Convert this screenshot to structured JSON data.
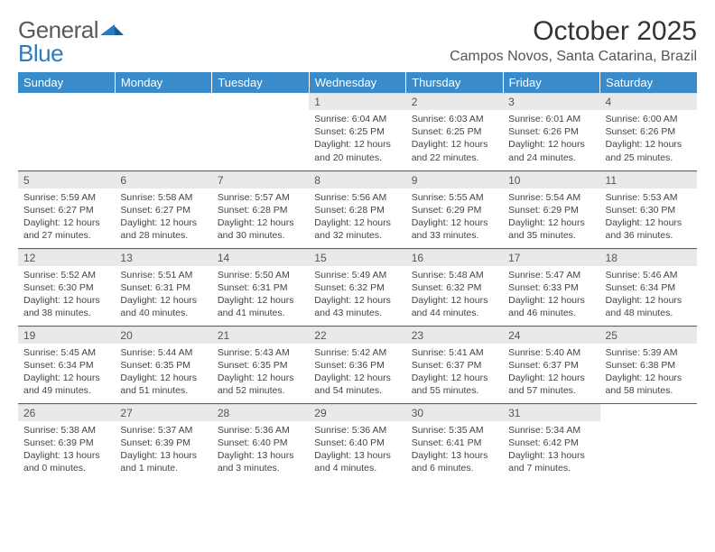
{
  "logo": {
    "text1": "General",
    "text2": "Blue"
  },
  "header": {
    "month_title": "October 2025",
    "location": "Campos Novos, Santa Catarina, Brazil"
  },
  "colors": {
    "header_bg": "#3a8bc9",
    "header_text": "#ffffff",
    "daynum_bg": "#e9e9e9",
    "row_divider": "#2b6ca3",
    "body_text": "#444"
  },
  "day_names": [
    "Sunday",
    "Monday",
    "Tuesday",
    "Wednesday",
    "Thursday",
    "Friday",
    "Saturday"
  ],
  "weeks": [
    [
      {
        "n": "",
        "sr": "",
        "ss": "",
        "dl": ""
      },
      {
        "n": "",
        "sr": "",
        "ss": "",
        "dl": ""
      },
      {
        "n": "",
        "sr": "",
        "ss": "",
        "dl": ""
      },
      {
        "n": "1",
        "sr": "Sunrise: 6:04 AM",
        "ss": "Sunset: 6:25 PM",
        "dl": "Daylight: 12 hours and 20 minutes."
      },
      {
        "n": "2",
        "sr": "Sunrise: 6:03 AM",
        "ss": "Sunset: 6:25 PM",
        "dl": "Daylight: 12 hours and 22 minutes."
      },
      {
        "n": "3",
        "sr": "Sunrise: 6:01 AM",
        "ss": "Sunset: 6:26 PM",
        "dl": "Daylight: 12 hours and 24 minutes."
      },
      {
        "n": "4",
        "sr": "Sunrise: 6:00 AM",
        "ss": "Sunset: 6:26 PM",
        "dl": "Daylight: 12 hours and 25 minutes."
      }
    ],
    [
      {
        "n": "5",
        "sr": "Sunrise: 5:59 AM",
        "ss": "Sunset: 6:27 PM",
        "dl": "Daylight: 12 hours and 27 minutes."
      },
      {
        "n": "6",
        "sr": "Sunrise: 5:58 AM",
        "ss": "Sunset: 6:27 PM",
        "dl": "Daylight: 12 hours and 28 minutes."
      },
      {
        "n": "7",
        "sr": "Sunrise: 5:57 AM",
        "ss": "Sunset: 6:28 PM",
        "dl": "Daylight: 12 hours and 30 minutes."
      },
      {
        "n": "8",
        "sr": "Sunrise: 5:56 AM",
        "ss": "Sunset: 6:28 PM",
        "dl": "Daylight: 12 hours and 32 minutes."
      },
      {
        "n": "9",
        "sr": "Sunrise: 5:55 AM",
        "ss": "Sunset: 6:29 PM",
        "dl": "Daylight: 12 hours and 33 minutes."
      },
      {
        "n": "10",
        "sr": "Sunrise: 5:54 AM",
        "ss": "Sunset: 6:29 PM",
        "dl": "Daylight: 12 hours and 35 minutes."
      },
      {
        "n": "11",
        "sr": "Sunrise: 5:53 AM",
        "ss": "Sunset: 6:30 PM",
        "dl": "Daylight: 12 hours and 36 minutes."
      }
    ],
    [
      {
        "n": "12",
        "sr": "Sunrise: 5:52 AM",
        "ss": "Sunset: 6:30 PM",
        "dl": "Daylight: 12 hours and 38 minutes."
      },
      {
        "n": "13",
        "sr": "Sunrise: 5:51 AM",
        "ss": "Sunset: 6:31 PM",
        "dl": "Daylight: 12 hours and 40 minutes."
      },
      {
        "n": "14",
        "sr": "Sunrise: 5:50 AM",
        "ss": "Sunset: 6:31 PM",
        "dl": "Daylight: 12 hours and 41 minutes."
      },
      {
        "n": "15",
        "sr": "Sunrise: 5:49 AM",
        "ss": "Sunset: 6:32 PM",
        "dl": "Daylight: 12 hours and 43 minutes."
      },
      {
        "n": "16",
        "sr": "Sunrise: 5:48 AM",
        "ss": "Sunset: 6:32 PM",
        "dl": "Daylight: 12 hours and 44 minutes."
      },
      {
        "n": "17",
        "sr": "Sunrise: 5:47 AM",
        "ss": "Sunset: 6:33 PM",
        "dl": "Daylight: 12 hours and 46 minutes."
      },
      {
        "n": "18",
        "sr": "Sunrise: 5:46 AM",
        "ss": "Sunset: 6:34 PM",
        "dl": "Daylight: 12 hours and 48 minutes."
      }
    ],
    [
      {
        "n": "19",
        "sr": "Sunrise: 5:45 AM",
        "ss": "Sunset: 6:34 PM",
        "dl": "Daylight: 12 hours and 49 minutes."
      },
      {
        "n": "20",
        "sr": "Sunrise: 5:44 AM",
        "ss": "Sunset: 6:35 PM",
        "dl": "Daylight: 12 hours and 51 minutes."
      },
      {
        "n": "21",
        "sr": "Sunrise: 5:43 AM",
        "ss": "Sunset: 6:35 PM",
        "dl": "Daylight: 12 hours and 52 minutes."
      },
      {
        "n": "22",
        "sr": "Sunrise: 5:42 AM",
        "ss": "Sunset: 6:36 PM",
        "dl": "Daylight: 12 hours and 54 minutes."
      },
      {
        "n": "23",
        "sr": "Sunrise: 5:41 AM",
        "ss": "Sunset: 6:37 PM",
        "dl": "Daylight: 12 hours and 55 minutes."
      },
      {
        "n": "24",
        "sr": "Sunrise: 5:40 AM",
        "ss": "Sunset: 6:37 PM",
        "dl": "Daylight: 12 hours and 57 minutes."
      },
      {
        "n": "25",
        "sr": "Sunrise: 5:39 AM",
        "ss": "Sunset: 6:38 PM",
        "dl": "Daylight: 12 hours and 58 minutes."
      }
    ],
    [
      {
        "n": "26",
        "sr": "Sunrise: 5:38 AM",
        "ss": "Sunset: 6:39 PM",
        "dl": "Daylight: 13 hours and 0 minutes."
      },
      {
        "n": "27",
        "sr": "Sunrise: 5:37 AM",
        "ss": "Sunset: 6:39 PM",
        "dl": "Daylight: 13 hours and 1 minute."
      },
      {
        "n": "28",
        "sr": "Sunrise: 5:36 AM",
        "ss": "Sunset: 6:40 PM",
        "dl": "Daylight: 13 hours and 3 minutes."
      },
      {
        "n": "29",
        "sr": "Sunrise: 5:36 AM",
        "ss": "Sunset: 6:40 PM",
        "dl": "Daylight: 13 hours and 4 minutes."
      },
      {
        "n": "30",
        "sr": "Sunrise: 5:35 AM",
        "ss": "Sunset: 6:41 PM",
        "dl": "Daylight: 13 hours and 6 minutes."
      },
      {
        "n": "31",
        "sr": "Sunrise: 5:34 AM",
        "ss": "Sunset: 6:42 PM",
        "dl": "Daylight: 13 hours and 7 minutes."
      },
      {
        "n": "",
        "sr": "",
        "ss": "",
        "dl": ""
      }
    ]
  ]
}
